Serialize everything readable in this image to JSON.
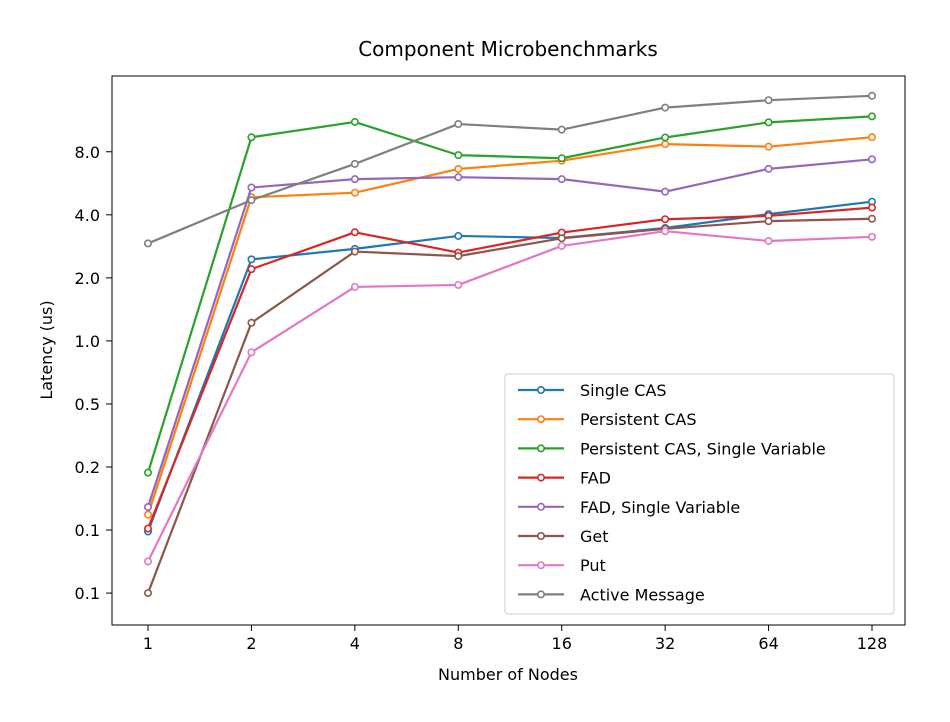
{
  "chart_data": {
    "type": "line",
    "title": "Component Microbenchmarks",
    "xlabel": "Number of Nodes",
    "ylabel": "Latency (us)",
    "y_scale": "log2",
    "categories": [
      "1",
      "2",
      "4",
      "8",
      "16",
      "32",
      "64",
      "128"
    ],
    "y_ticks": [
      {
        "value": 0.0625,
        "label": "0.1"
      },
      {
        "value": 0.125,
        "label": "0.1"
      },
      {
        "value": 0.25,
        "label": "0.2"
      },
      {
        "value": 0.5,
        "label": "0.5"
      },
      {
        "value": 1.0,
        "label": "1.0"
      },
      {
        "value": 2.0,
        "label": "2.0"
      },
      {
        "value": 4.0,
        "label": "4.0"
      },
      {
        "value": 8.0,
        "label": "8.0"
      }
    ],
    "ylim": [
      0.044,
      18.4
    ],
    "grid": false,
    "legend_position": "lower-right",
    "series": [
      {
        "name": "Single CAS",
        "color": "#1f77b4",
        "values": [
          0.123,
          2.45,
          2.75,
          3.17,
          3.1,
          3.46,
          4.03,
          4.62
        ]
      },
      {
        "name": "Persistent CAS",
        "color": "#ff7f0e",
        "values": [
          0.148,
          4.85,
          5.1,
          6.62,
          7.25,
          8.7,
          8.46,
          9.39
        ]
      },
      {
        "name": "Persistent CAS, Single Variable",
        "color": "#2ca02c",
        "values": [
          0.235,
          9.38,
          11.1,
          7.71,
          7.45,
          9.36,
          11.05,
          11.8
        ]
      },
      {
        "name": "FAD",
        "color": "#d62728",
        "values": [
          0.127,
          2.2,
          3.3,
          2.64,
          3.29,
          3.81,
          3.95,
          4.33
        ]
      },
      {
        "name": "FAD, Single Variable",
        "color": "#9467bd",
        "values": [
          0.161,
          5.4,
          5.92,
          6.05,
          5.92,
          5.16,
          6.63,
          7.36
        ]
      },
      {
        "name": "Get",
        "color": "#8c564b",
        "values": [
          0.0625,
          1.22,
          2.67,
          2.54,
          3.09,
          3.43,
          3.73,
          3.83
        ]
      },
      {
        "name": "Put",
        "color": "#e377c2",
        "values": [
          0.0885,
          0.882,
          1.81,
          1.85,
          2.84,
          3.34,
          3.0,
          3.14
        ]
      },
      {
        "name": "Active Message",
        "color": "#7f7f7f",
        "values": [
          2.92,
          4.7,
          7.0,
          10.85,
          10.2,
          13.0,
          14.1,
          14.8
        ]
      }
    ]
  }
}
